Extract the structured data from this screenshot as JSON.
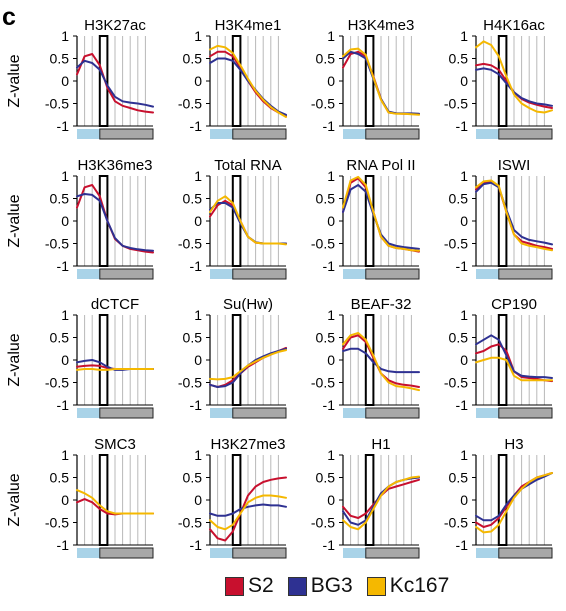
{
  "panel_letter": "c",
  "colors": {
    "S2": "#c8102e",
    "BG3": "#2e3192",
    "Kc167": "#f5b800"
  },
  "chart_data": {
    "type": "line",
    "ylabel": "Z-value",
    "yticks": [
      "1",
      "0.5",
      "0",
      "-0.5",
      "-1"
    ],
    "ylim": [
      -1,
      1
    ],
    "x": [
      0,
      1,
      2,
      3,
      4,
      5,
      6,
      7,
      8,
      9,
      10
    ],
    "legend": [
      "S2",
      "BG3",
      "Kc167"
    ],
    "panels": [
      {
        "title": "H3K27ac",
        "series": [
          {
            "name": "S2",
            "values": [
              0.15,
              0.55,
              0.6,
              0.35,
              -0.15,
              -0.45,
              -0.55,
              -0.6,
              -0.65,
              -0.68,
              -0.7
            ]
          },
          {
            "name": "BG3",
            "values": [
              0.3,
              0.45,
              0.4,
              0.25,
              -0.1,
              -0.35,
              -0.45,
              -0.48,
              -0.5,
              -0.53,
              -0.57
            ]
          }
        ]
      },
      {
        "title": "H3K4me1",
        "series": [
          {
            "name": "S2",
            "values": [
              0.55,
              0.65,
              0.65,
              0.55,
              0.3,
              0.0,
              -0.25,
              -0.45,
              -0.6,
              -0.7,
              -0.78
            ]
          },
          {
            "name": "BG3",
            "values": [
              0.4,
              0.5,
              0.5,
              0.45,
              0.25,
              0.0,
              -0.2,
              -0.4,
              -0.55,
              -0.68,
              -0.75
            ]
          },
          {
            "name": "Kc167",
            "values": [
              0.7,
              0.78,
              0.75,
              0.62,
              0.35,
              0.05,
              -0.22,
              -0.42,
              -0.58,
              -0.7,
              -0.8
            ]
          }
        ]
      },
      {
        "title": "H3K4me3",
        "series": [
          {
            "name": "S2",
            "values": [
              0.3,
              0.6,
              0.65,
              0.55,
              0.1,
              -0.4,
              -0.7,
              -0.72,
              -0.73,
              -0.73,
              -0.74
            ]
          },
          {
            "name": "BG3",
            "values": [
              0.5,
              0.65,
              0.6,
              0.5,
              0.05,
              -0.4,
              -0.68,
              -0.72,
              -0.72,
              -0.72,
              -0.73
            ]
          },
          {
            "name": "Kc167",
            "values": [
              0.55,
              0.7,
              0.72,
              0.58,
              0.08,
              -0.42,
              -0.7,
              -0.73,
              -0.73,
              -0.74,
              -0.75
            ]
          }
        ]
      },
      {
        "title": "H4K16ac",
        "series": [
          {
            "name": "S2",
            "values": [
              0.35,
              0.38,
              0.35,
              0.25,
              0.0,
              -0.25,
              -0.4,
              -0.48,
              -0.53,
              -0.57,
              -0.6
            ]
          },
          {
            "name": "BG3",
            "values": [
              0.25,
              0.28,
              0.25,
              0.15,
              -0.05,
              -0.25,
              -0.38,
              -0.45,
              -0.5,
              -0.52,
              -0.55
            ]
          },
          {
            "name": "Kc167",
            "values": [
              0.75,
              0.88,
              0.8,
              0.55,
              0.1,
              -0.3,
              -0.5,
              -0.6,
              -0.68,
              -0.7,
              -0.65
            ]
          }
        ]
      },
      {
        "title": "H3K36me3",
        "series": [
          {
            "name": "S2",
            "values": [
              0.3,
              0.75,
              0.8,
              0.55,
              0.0,
              -0.4,
              -0.55,
              -0.62,
              -0.65,
              -0.68,
              -0.7
            ]
          },
          {
            "name": "BG3",
            "values": [
              0.55,
              0.6,
              0.58,
              0.45,
              0.0,
              -0.38,
              -0.55,
              -0.6,
              -0.63,
              -0.65,
              -0.66
            ]
          }
        ]
      },
      {
        "title": "Total RNA",
        "series": [
          {
            "name": "S2",
            "values": [
              0.1,
              0.35,
              0.45,
              0.35,
              0.0,
              -0.35,
              -0.48,
              -0.5,
              -0.5,
              -0.5,
              -0.5
            ]
          },
          {
            "name": "BG3",
            "values": [
              0.25,
              0.4,
              0.4,
              0.3,
              -0.05,
              -0.35,
              -0.47,
              -0.5,
              -0.5,
              -0.5,
              -0.5
            ]
          },
          {
            "name": "Kc167",
            "values": [
              0.2,
              0.45,
              0.55,
              0.4,
              0.0,
              -0.35,
              -0.48,
              -0.5,
              -0.5,
              -0.5,
              -0.52
            ]
          }
        ]
      },
      {
        "title": "RNA Pol II",
        "series": [
          {
            "name": "S2",
            "values": [
              0.2,
              0.85,
              0.95,
              0.75,
              0.2,
              -0.35,
              -0.55,
              -0.6,
              -0.62,
              -0.65,
              -0.68
            ]
          },
          {
            "name": "BG3",
            "values": [
              0.2,
              0.7,
              0.8,
              0.65,
              0.15,
              -0.3,
              -0.5,
              -0.55,
              -0.58,
              -0.6,
              -0.62
            ]
          },
          {
            "name": "Kc167",
            "values": [
              0.3,
              0.9,
              0.98,
              0.8,
              0.2,
              -0.35,
              -0.55,
              -0.6,
              -0.62,
              -0.65,
              -0.66
            ]
          }
        ]
      },
      {
        "title": "ISWI",
        "series": [
          {
            "name": "S2",
            "values": [
              0.7,
              0.85,
              0.88,
              0.75,
              0.2,
              -0.3,
              -0.45,
              -0.5,
              -0.55,
              -0.58,
              -0.62
            ]
          },
          {
            "name": "BG3",
            "values": [
              0.65,
              0.82,
              0.85,
              0.75,
              0.25,
              -0.2,
              -0.35,
              -0.42,
              -0.45,
              -0.48,
              -0.52
            ]
          },
          {
            "name": "Kc167",
            "values": [
              0.75,
              0.88,
              0.9,
              0.78,
              0.2,
              -0.3,
              -0.5,
              -0.55,
              -0.58,
              -0.62,
              -0.65
            ]
          }
        ]
      },
      {
        "title": "dCTCF",
        "series": [
          {
            "name": "S2",
            "values": [
              -0.15,
              -0.13,
              -0.12,
              -0.13,
              -0.18,
              -0.2,
              -0.2,
              -0.2,
              -0.2,
              -0.2,
              -0.2
            ]
          },
          {
            "name": "BG3",
            "values": [
              -0.05,
              -0.02,
              0.0,
              -0.05,
              -0.15,
              -0.22,
              -0.22,
              -0.2,
              -0.2,
              -0.2,
              -0.2
            ]
          },
          {
            "name": "Kc167",
            "values": [
              -0.22,
              -0.2,
              -0.2,
              -0.22,
              -0.22,
              -0.2,
              -0.2,
              -0.2,
              -0.2,
              -0.2,
              -0.2
            ]
          }
        ]
      },
      {
        "title": "Su(Hw)",
        "series": [
          {
            "name": "S2",
            "values": [
              -0.55,
              -0.6,
              -0.55,
              -0.45,
              -0.3,
              -0.15,
              -0.05,
              0.05,
              0.12,
              0.2,
              0.27
            ]
          },
          {
            "name": "BG3",
            "values": [
              -0.55,
              -0.6,
              -0.58,
              -0.5,
              -0.3,
              -0.12,
              0.0,
              0.08,
              0.15,
              0.2,
              0.25
            ]
          },
          {
            "name": "Kc167",
            "values": [
              -0.42,
              -0.43,
              -0.42,
              -0.38,
              -0.25,
              -0.12,
              -0.03,
              0.05,
              0.12,
              0.18,
              0.22
            ]
          }
        ]
      },
      {
        "title": "BEAF-32",
        "series": [
          {
            "name": "S2",
            "values": [
              0.25,
              0.5,
              0.55,
              0.4,
              0.05,
              -0.3,
              -0.45,
              -0.52,
              -0.55,
              -0.57,
              -0.6
            ]
          },
          {
            "name": "BG3",
            "values": [
              0.2,
              0.25,
              0.25,
              0.15,
              -0.05,
              -0.2,
              -0.25,
              -0.27,
              -0.27,
              -0.27,
              -0.27
            ]
          },
          {
            "name": "Kc167",
            "values": [
              0.35,
              0.55,
              0.6,
              0.45,
              0.1,
              -0.3,
              -0.5,
              -0.58,
              -0.6,
              -0.63,
              -0.67
            ]
          }
        ]
      },
      {
        "title": "CP190",
        "series": [
          {
            "name": "S2",
            "values": [
              0.15,
              0.2,
              0.3,
              0.35,
              0.2,
              -0.25,
              -0.38,
              -0.4,
              -0.42,
              -0.45,
              -0.47
            ]
          },
          {
            "name": "BG3",
            "values": [
              0.35,
              0.45,
              0.55,
              0.45,
              0.1,
              -0.25,
              -0.35,
              -0.37,
              -0.38,
              -0.38,
              -0.4
            ]
          },
          {
            "name": "Kc167",
            "values": [
              -0.05,
              0.0,
              0.05,
              0.05,
              0.0,
              -0.35,
              -0.45,
              -0.45,
              -0.45,
              -0.45,
              -0.45
            ]
          }
        ]
      },
      {
        "title": "SMC3",
        "series": [
          {
            "name": "S2",
            "values": [
              -0.05,
              0.02,
              -0.05,
              -0.2,
              -0.3,
              -0.32,
              -0.3,
              -0.3,
              -0.3,
              -0.3,
              -0.3
            ]
          },
          {
            "name": "Kc167",
            "values": [
              0.22,
              0.15,
              0.05,
              -0.12,
              -0.25,
              -0.3,
              -0.3,
              -0.3,
              -0.3,
              -0.3,
              -0.3
            ]
          }
        ]
      },
      {
        "title": "H3K27me3",
        "series": [
          {
            "name": "S2",
            "values": [
              -0.65,
              -0.85,
              -0.9,
              -0.7,
              -0.3,
              0.1,
              0.3,
              0.4,
              0.45,
              0.48,
              0.5
            ]
          },
          {
            "name": "BG3",
            "values": [
              -0.3,
              -0.35,
              -0.35,
              -0.3,
              -0.2,
              -0.15,
              -0.12,
              -0.1,
              -0.12,
              -0.12,
              -0.15
            ]
          },
          {
            "name": "Kc167",
            "values": [
              -0.45,
              -0.6,
              -0.65,
              -0.55,
              -0.3,
              -0.05,
              0.05,
              0.1,
              0.1,
              0.08,
              0.05
            ]
          }
        ]
      },
      {
        "title": "H1",
        "series": [
          {
            "name": "S2",
            "values": [
              -0.15,
              -0.35,
              -0.4,
              -0.3,
              -0.1,
              0.1,
              0.25,
              0.3,
              0.35,
              0.4,
              0.45
            ]
          },
          {
            "name": "BG3",
            "values": [
              -0.25,
              -0.5,
              -0.55,
              -0.45,
              -0.15,
              0.15,
              0.3,
              0.4,
              0.45,
              0.48,
              0.5
            ]
          },
          {
            "name": "Kc167",
            "values": [
              -0.45,
              -0.6,
              -0.65,
              -0.5,
              -0.2,
              0.1,
              0.3,
              0.4,
              0.45,
              0.5,
              0.52
            ]
          }
        ]
      },
      {
        "title": "H3",
        "series": [
          {
            "name": "S2",
            "values": [
              -0.5,
              -0.6,
              -0.55,
              -0.4,
              -0.15,
              0.1,
              0.3,
              0.4,
              0.5,
              0.55,
              0.6
            ]
          },
          {
            "name": "BG3",
            "values": [
              -0.35,
              -0.45,
              -0.45,
              -0.35,
              -0.1,
              0.1,
              0.25,
              0.35,
              0.45,
              0.52,
              0.6
            ]
          },
          {
            "name": "Kc167",
            "values": [
              -0.6,
              -0.72,
              -0.7,
              -0.55,
              -0.25,
              0.05,
              0.25,
              0.4,
              0.5,
              0.55,
              0.6
            ]
          }
        ]
      }
    ]
  }
}
